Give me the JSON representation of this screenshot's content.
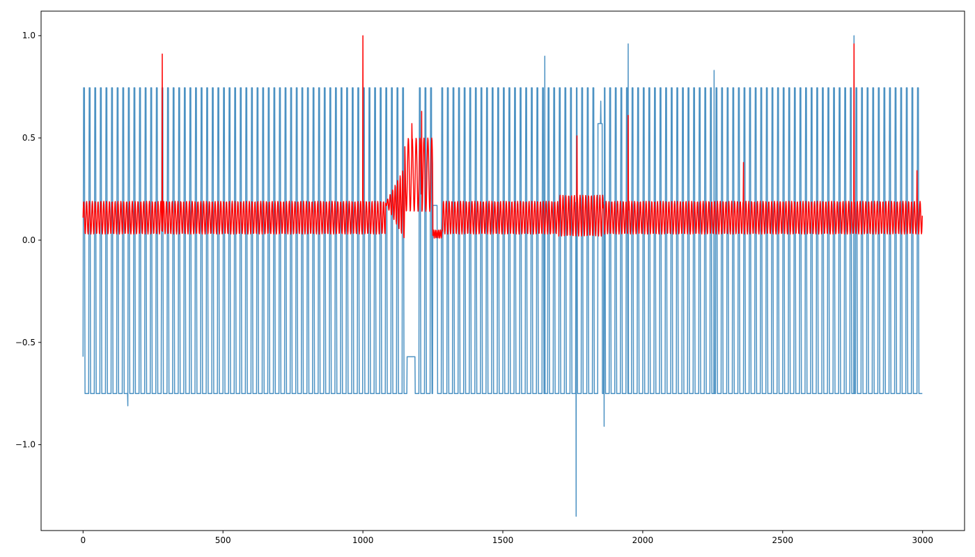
{
  "chart_data": {
    "type": "line",
    "title": "",
    "xlabel": "",
    "ylabel": "",
    "xlim": [
      -150,
      3150
    ],
    "ylim": [
      -1.42,
      1.12
    ],
    "x_ticks": [
      0,
      500,
      1000,
      1500,
      2000,
      2500,
      3000
    ],
    "y_ticks": [
      -1.0,
      -0.5,
      0.0,
      0.5,
      1.0
    ],
    "x_tick_labels": [
      "0",
      "500",
      "1000",
      "1500",
      "2000",
      "2500",
      "3000"
    ],
    "y_tick_labels": [
      "−1.0",
      "−0.5",
      "0.0",
      "0.5",
      "1.0"
    ],
    "grid": false,
    "legend": "none",
    "series": [
      {
        "color": "#1f77b4",
        "alpha": 0.8,
        "n_points": 3000,
        "pattern": "square-like oscillation between -0.75 and 0.745, period ~20 samples",
        "values": [],
        "flat_segments": [
          {
            "x_start": 1158,
            "x_end": 1186,
            "y": -0.57
          },
          {
            "x_start": 1250,
            "x_end": 1265,
            "y": 0.17
          },
          {
            "x_start": 1840,
            "x_end": 1855,
            "y": 0.57
          }
        ],
        "spikes": [
          {
            "x": 0,
            "y": -0.57
          },
          {
            "x": 160,
            "y": -0.81
          },
          {
            "x": 280,
            "y": -0.25
          },
          {
            "x": 1000,
            "y": -0.28
          },
          {
            "x": 1650,
            "y": 0.9
          },
          {
            "x": 1762,
            "y": -1.35
          },
          {
            "x": 1850,
            "y": 0.68
          },
          {
            "x": 1862,
            "y": -0.91
          },
          {
            "x": 1948,
            "y": 0.96
          },
          {
            "x": 2255,
            "y": 0.83
          },
          {
            "x": 2755,
            "y": 1.0
          },
          {
            "x": 3000,
            "y": -0.39
          }
        ]
      },
      {
        "color": "#ff0000",
        "alpha": 1.0,
        "n_points": 3000,
        "pattern": "dense oscillation mostly between 0.03 and 0.19, bursts near x=1100-1250 and x=1750-1860",
        "values": [],
        "spikes": [
          {
            "x": 283,
            "y": 0.91
          },
          {
            "x": 1000,
            "y": 1.0
          },
          {
            "x": 1175,
            "y": 0.57
          },
          {
            "x": 1210,
            "y": 0.63
          },
          {
            "x": 1765,
            "y": 0.51
          },
          {
            "x": 1948,
            "y": 0.61
          },
          {
            "x": 2360,
            "y": 0.38
          },
          {
            "x": 2755,
            "y": 0.96
          },
          {
            "x": 2980,
            "y": 0.34
          }
        ]
      }
    ]
  }
}
